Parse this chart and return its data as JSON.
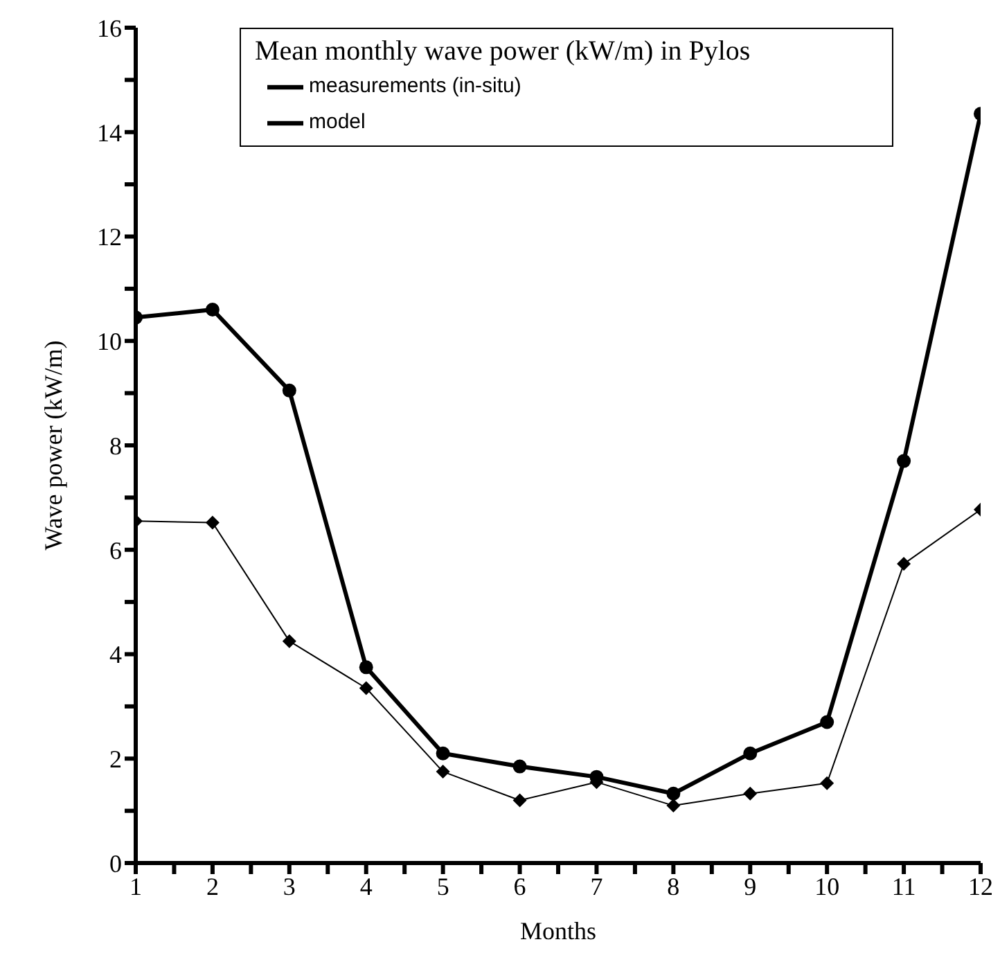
{
  "chart_data": {
    "type": "line",
    "legend_title": "Mean monthly wave power (kW/m) in Pylos",
    "xlabel": "Months",
    "ylabel": "Wave power (kW/m)",
    "x": [
      1,
      2,
      3,
      4,
      5,
      6,
      7,
      8,
      9,
      10,
      11,
      12
    ],
    "series": [
      {
        "name": "measurements (in-situ)",
        "color": "#000000",
        "marker": "circle",
        "values": [
          10.45,
          10.6,
          9.05,
          3.75,
          2.1,
          1.85,
          1.65,
          1.33,
          2.1,
          2.7,
          7.7,
          14.35
        ]
      },
      {
        "name": "model",
        "color": "#000000",
        "marker": "diamond",
        "values": [
          6.55,
          6.52,
          4.25,
          3.35,
          1.75,
          1.2,
          1.55,
          1.1,
          1.33,
          1.53,
          5.73,
          6.77
        ]
      }
    ],
    "xlim": [
      1,
      12
    ],
    "xticks": [
      1,
      {
        "value": 1.5,
        "label": null
      },
      2,
      {
        "value": 2.5,
        "label": null
      },
      3,
      {
        "value": 3.5,
        "label": null
      },
      4,
      {
        "value": 4.5,
        "label": null
      },
      5,
      {
        "value": 5.5,
        "label": null
      },
      6,
      {
        "value": 6.5,
        "label": null
      },
      7,
      {
        "value": 7.5,
        "label": null
      },
      8,
      {
        "value": 8.5,
        "label": null
      },
      9,
      {
        "value": 9.5,
        "label": null
      },
      10,
      {
        "value": 10.5,
        "label": null
      },
      11,
      {
        "value": 11.5,
        "label": null
      },
      12
    ],
    "ylim": [
      0,
      16
    ],
    "yticks": [
      0,
      {
        "value": 1,
        "label": null
      },
      2,
      {
        "value": 3,
        "label": null
      },
      4,
      {
        "value": 5,
        "label": null
      },
      6,
      {
        "value": 7,
        "label": null
      },
      8,
      {
        "value": 9,
        "label": null
      },
      10,
      {
        "value": 11,
        "label": null
      },
      12,
      {
        "value": 13,
        "label": null
      },
      14,
      {
        "value": 15,
        "label": null
      },
      16
    ],
    "grid": false,
    "legend": "top",
    "line_style": "solid"
  }
}
